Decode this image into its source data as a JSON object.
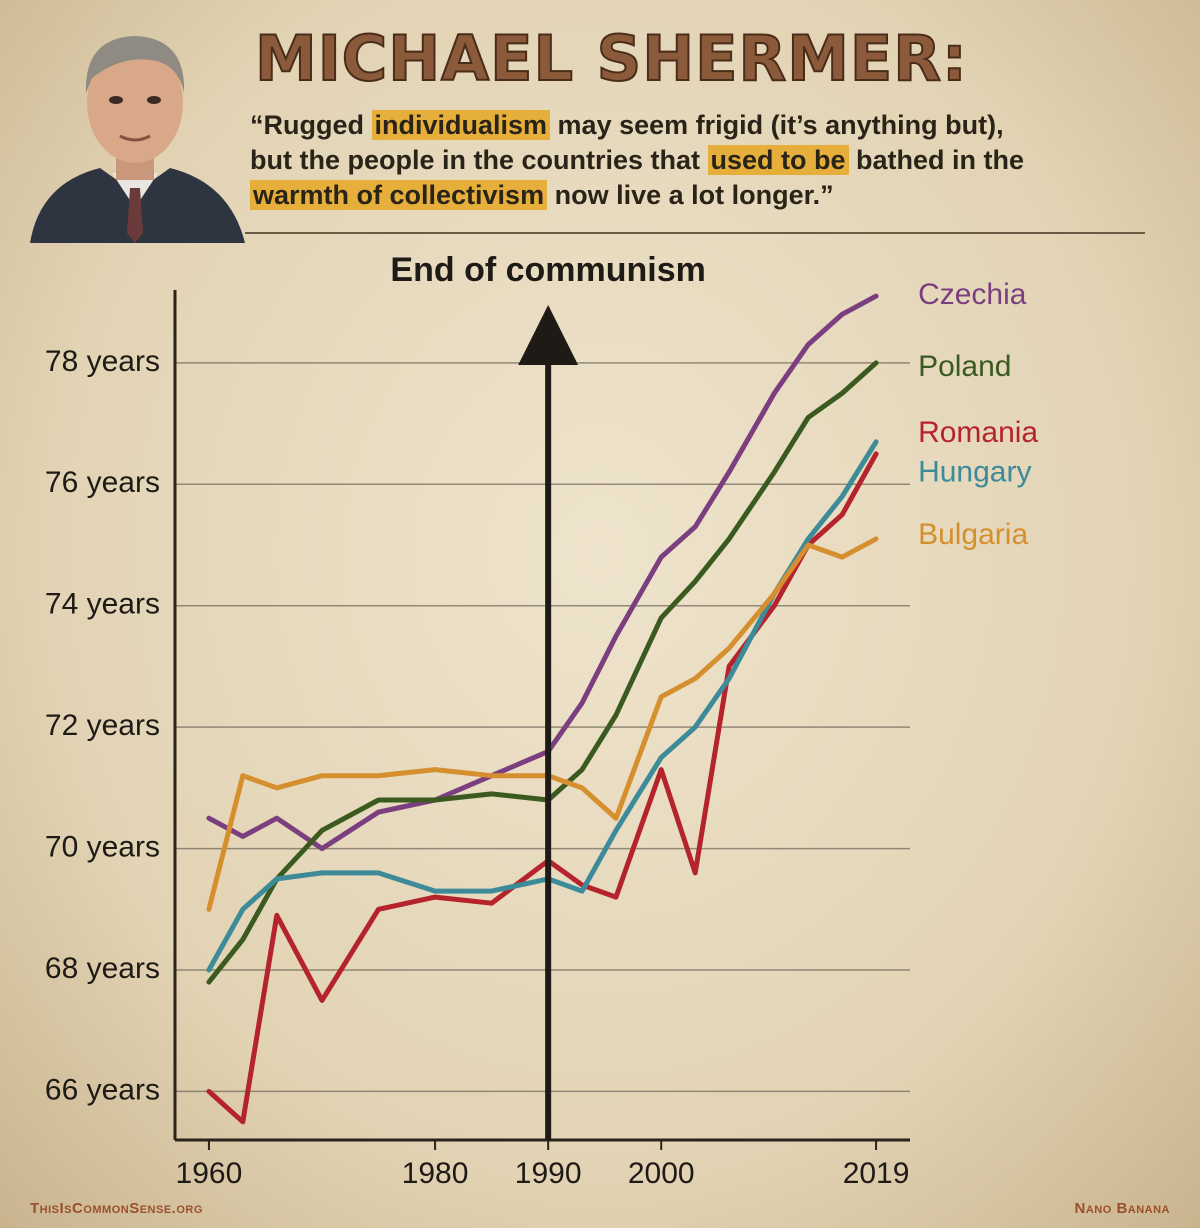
{
  "header": {
    "title": "MICHAEL SHERMER:",
    "quote": [
      [
        {
          "text": "“Rugged ",
          "highlight": false
        },
        {
          "text": "individualism",
          "highlight": true
        },
        {
          "text": " may seem frigid (it’s anything but),",
          "highlight": false
        }
      ],
      [
        {
          "text": "but the people in the countries that ",
          "highlight": false
        },
        {
          "text": "used to be",
          "highlight": true
        },
        {
          "text": " bathed in the",
          "highlight": false
        }
      ],
      [
        {
          "text": "warmth of collectivism",
          "highlight": true
        },
        {
          "text": " now live a lot longer.”",
          "highlight": false
        }
      ]
    ]
  },
  "footer": {
    "left": "ThisIsCommonSense.org",
    "right": "Nano Banana"
  },
  "chart_data": {
    "type": "line",
    "annotation": {
      "text": "End of communism",
      "x": 1990
    },
    "x": [
      1960,
      1963,
      1966,
      1970,
      1975,
      1980,
      1985,
      1990,
      1993,
      1996,
      2000,
      2003,
      2006,
      2010,
      2013,
      2016,
      2019
    ],
    "series": [
      {
        "name": "Czechia",
        "color": "#7b3f80",
        "values": [
          70.5,
          70.2,
          70.5,
          70.0,
          70.6,
          70.8,
          71.2,
          71.6,
          72.4,
          73.5,
          74.8,
          75.3,
          76.2,
          77.5,
          78.3,
          78.8,
          79.1
        ]
      },
      {
        "name": "Poland",
        "color": "#3b5a1f",
        "values": [
          67.8,
          68.5,
          69.5,
          70.3,
          70.8,
          70.8,
          70.9,
          70.8,
          71.3,
          72.2,
          73.8,
          74.4,
          75.1,
          76.2,
          77.1,
          77.5,
          78.0
        ]
      },
      {
        "name": "Romania",
        "color": "#b5232c",
        "values": [
          66.0,
          65.5,
          68.9,
          67.5,
          69.0,
          69.2,
          69.1,
          69.8,
          69.4,
          69.2,
          71.3,
          69.6,
          73.0,
          74.0,
          75.0,
          75.5,
          76.5
        ]
      },
      {
        "name": "Hungary",
        "color": "#3d8a99",
        "values": [
          68.0,
          69.0,
          69.5,
          69.6,
          69.6,
          69.3,
          69.3,
          69.5,
          69.3,
          70.3,
          71.5,
          72.0,
          72.8,
          74.2,
          75.1,
          75.8,
          76.7
        ]
      },
      {
        "name": "Bulgaria",
        "color": "#d68f2e",
        "values": [
          69.0,
          71.2,
          71.0,
          71.2,
          71.2,
          71.3,
          71.2,
          71.2,
          71.0,
          70.5,
          72.5,
          72.8,
          73.3,
          74.2,
          75.0,
          74.8,
          75.1
        ]
      }
    ],
    "xlim": [
      1957,
      2022
    ],
    "xticks": [
      1960,
      1980,
      1990,
      2000,
      2019
    ],
    "ylim": [
      65.2,
      79.2
    ],
    "yticks": [
      {
        "value": 66,
        "label": "66 years"
      },
      {
        "value": 68,
        "label": "68 years"
      },
      {
        "value": 70,
        "label": "70 years"
      },
      {
        "value": 72,
        "label": "72 years"
      },
      {
        "value": 74,
        "label": "74 years"
      },
      {
        "value": 76,
        "label": "76 years"
      },
      {
        "value": 78,
        "label": "78 years"
      }
    ],
    "grid": true
  }
}
